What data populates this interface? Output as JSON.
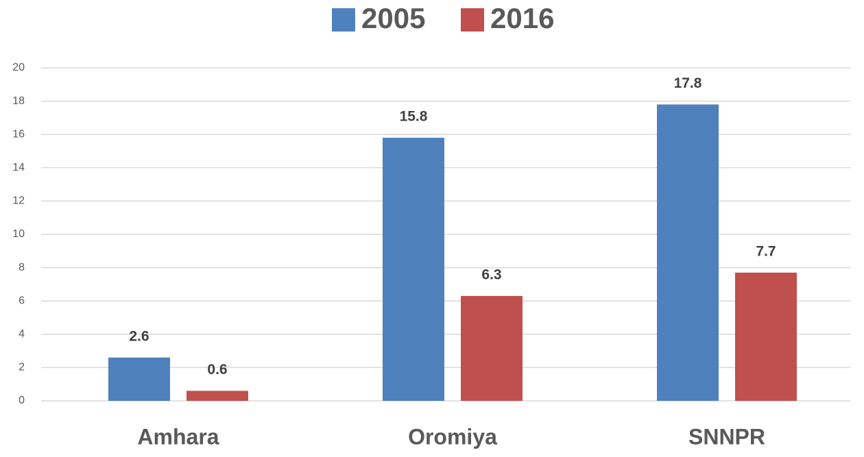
{
  "chart_data": {
    "type": "bar",
    "categories": [
      "Amhara",
      "Oromiya",
      "SNNPR"
    ],
    "series": [
      {
        "name": "2005",
        "color": "#4f81bd",
        "values": [
          2.6,
          15.8,
          17.8
        ]
      },
      {
        "name": "2016",
        "color": "#c0504d",
        "values": [
          0.6,
          6.3,
          7.7
        ]
      }
    ],
    "ylim": [
      0,
      20
    ],
    "yticks": [
      0,
      2,
      4,
      6,
      8,
      10,
      12,
      14,
      16,
      18,
      20
    ],
    "grid": true,
    "legend": "top"
  }
}
